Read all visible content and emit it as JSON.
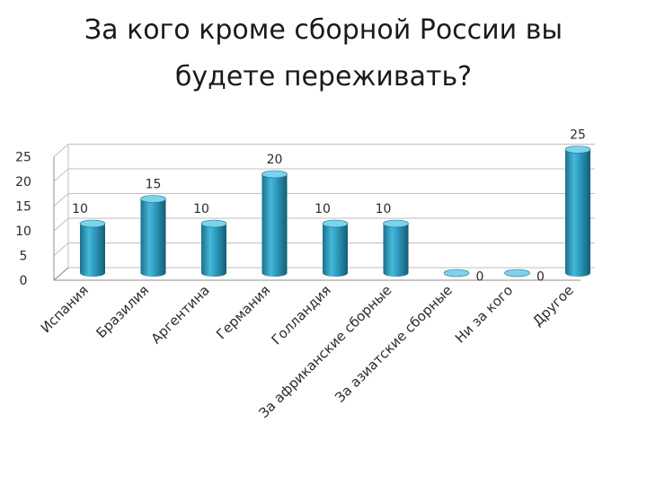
{
  "title_lines": [
    "За кого кроме сборной России вы",
    "будете переживать?"
  ],
  "colors": {
    "bar": "#2f9fc4",
    "bar_dark": "#1b6f8c",
    "bar_light": "#7dd3ea",
    "grid": "#bfbfbf"
  },
  "chart_data": {
    "type": "bar",
    "title": "За кого кроме сборной России вы будете переживать?",
    "xlabel": "",
    "ylabel": "",
    "categories": [
      "Испания",
      "Бразилия",
      "Аргентина",
      "Германия",
      "Голландия",
      "За африканские сборные",
      "За азиатские сборные",
      "Ни за кого",
      "Другое"
    ],
    "values": [
      10,
      15,
      10,
      20,
      10,
      10,
      0,
      0,
      25
    ],
    "data_labels": [
      "10",
      "15",
      "10",
      "20",
      "10",
      "10",
      "0",
      "0",
      "25"
    ],
    "ylim": [
      0,
      25
    ],
    "yticks": [
      0,
      5,
      10,
      15,
      20,
      25
    ],
    "grid": true,
    "legend": "none",
    "three_d": true
  }
}
